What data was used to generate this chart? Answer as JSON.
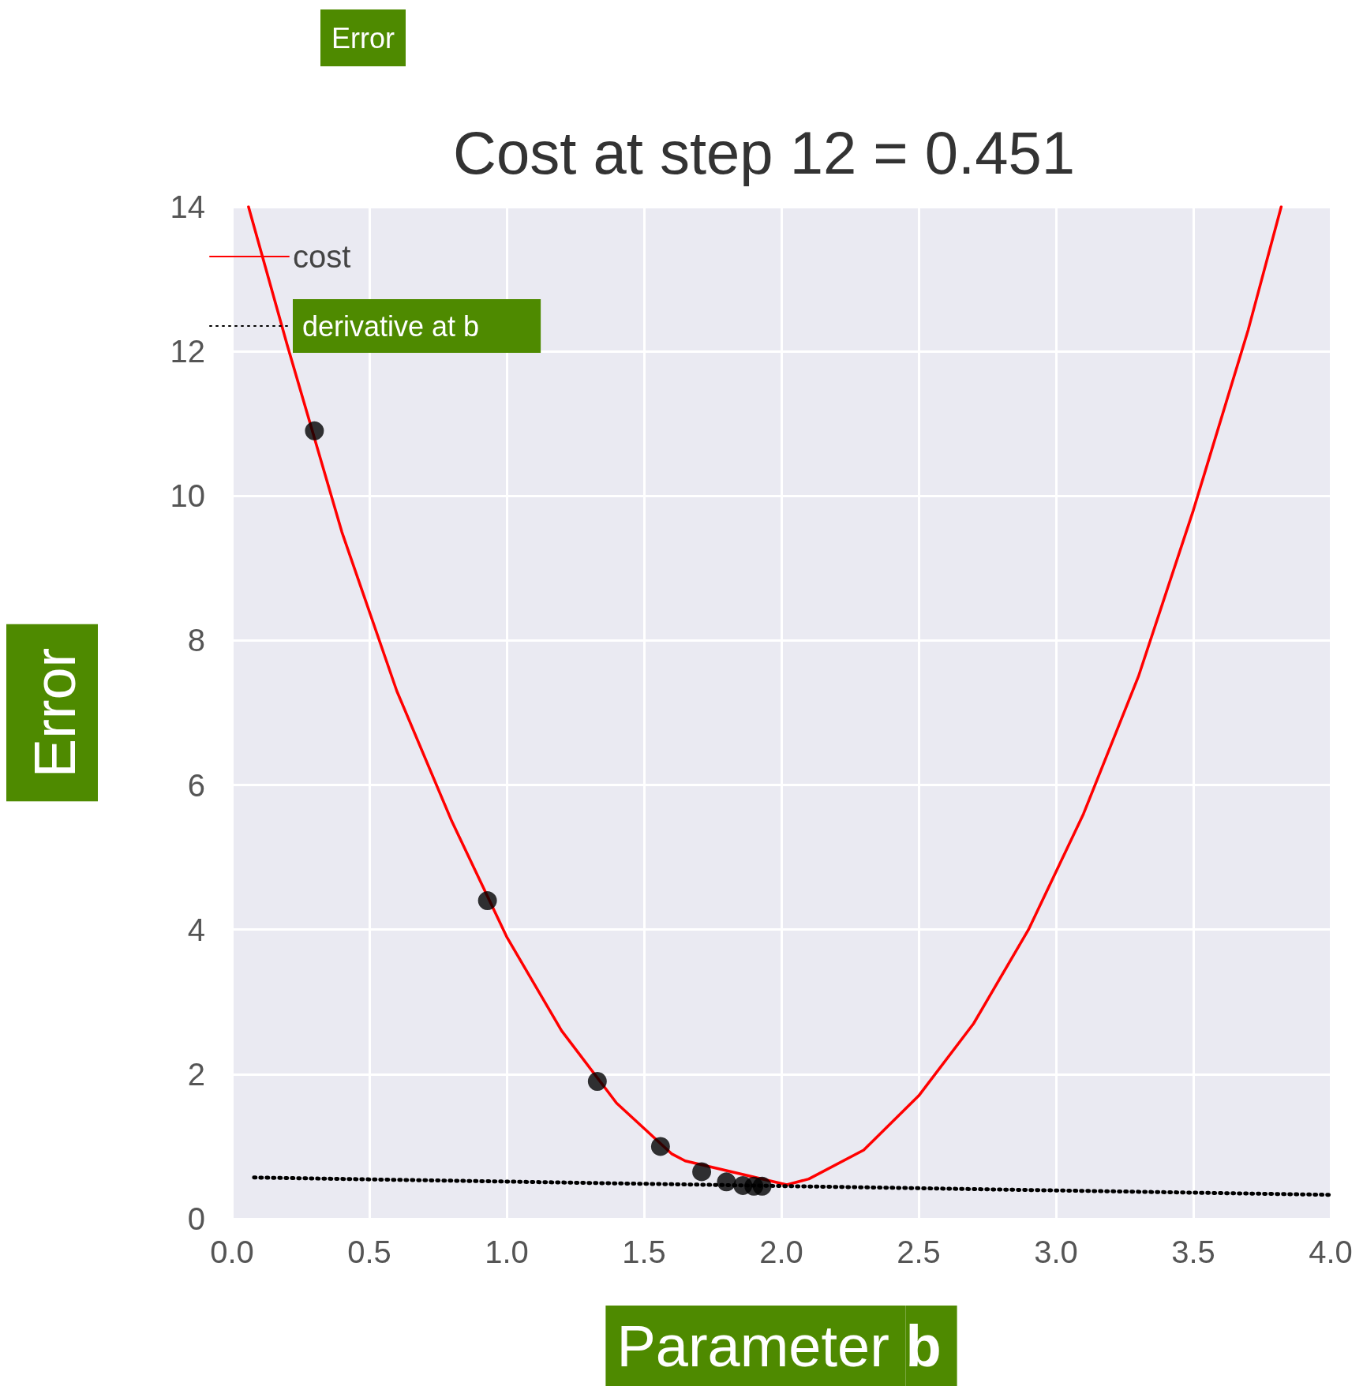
{
  "chart_data": {
    "type": "line",
    "title": "Cost at step 12 = 0.451",
    "xlabel": "Parameter b",
    "ylabel": "Error",
    "annotations": [
      "Error"
    ],
    "xlim": [
      0,
      4
    ],
    "ylim": [
      0,
      14
    ],
    "xticks": [
      {
        "value": 0,
        "label": "0.0"
      },
      {
        "value": 0.5,
        "label": "0.5"
      },
      {
        "value": 1,
        "label": "1.0"
      },
      {
        "value": 1.5,
        "label": "1.5"
      },
      {
        "value": 2,
        "label": "2.0"
      },
      {
        "value": 2.5,
        "label": "2.5"
      },
      {
        "value": 3,
        "label": "3.0"
      },
      {
        "value": 3.5,
        "label": "3.5"
      },
      {
        "value": 4,
        "label": "4.0"
      }
    ],
    "yticks": [
      0,
      2,
      4,
      6,
      8,
      10,
      12,
      14
    ],
    "grid": true,
    "legend": "top left",
    "marker": "none",
    "series": [
      {
        "name": "cost",
        "color": "#ff0000",
        "line_style": "solid",
        "x": [
          0.06,
          0.2,
          0.4,
          0.6,
          0.8,
          1.0,
          1.2,
          1.4,
          1.6,
          1.65,
          2.02,
          2.1,
          2.3,
          2.5,
          2.7,
          2.9,
          3.1,
          3.3,
          3.5,
          3.7,
          3.82
        ],
        "values": [
          14.0,
          12.1,
          9.5,
          7.3,
          5.5,
          3.9,
          2.6,
          1.6,
          0.9,
          0.8,
          0.47,
          0.55,
          0.95,
          1.7,
          2.7,
          4.0,
          5.6,
          7.5,
          9.8,
          12.3,
          14.0
        ]
      },
      {
        "name": "derivative at b",
        "color": "#000000",
        "line_style": "dotted",
        "x": [
          0.08,
          4.0
        ],
        "values": [
          0.57,
          0.33
        ]
      },
      {
        "type": "scatter",
        "color": "#000000",
        "marker": "circle",
        "x": [
          0.3,
          0.93,
          1.33,
          1.56,
          1.71,
          1.8,
          1.86,
          1.9,
          1.93
        ],
        "values": [
          10.9,
          4.4,
          1.9,
          1.0,
          0.65,
          0.51,
          0.46,
          0.45,
          0.45
        ]
      }
    ]
  }
}
